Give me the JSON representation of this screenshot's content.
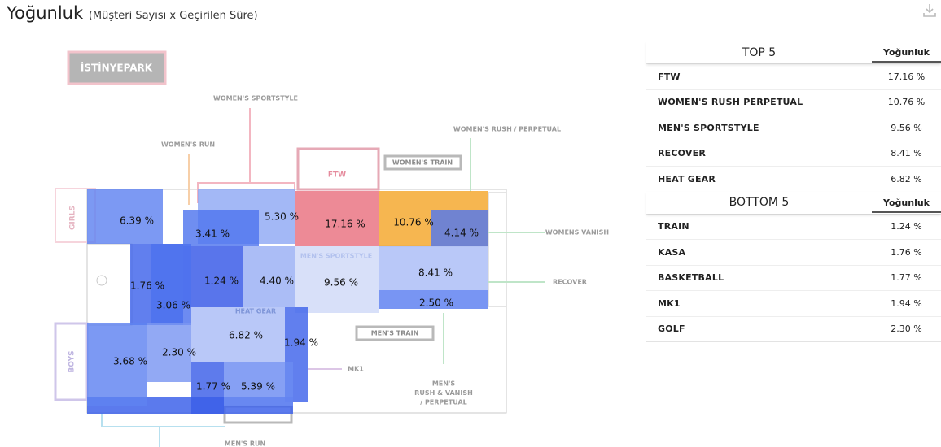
{
  "header": {
    "title": "Yoğunluk",
    "subtitle": "(Müşteri Sayısı x Geçirilen Süre)"
  },
  "map": {
    "store": "İSTİNYEPARK",
    "zones": [
      "WOMEN'S SPORTSTYLE",
      "WOMEN'S RUN",
      "GIRLS",
      "FTW",
      "WOMEN'S TRAIN",
      "WOMEN'S RUSH  / PERPETUAL",
      "WOMENS VANISH",
      "RECOVER",
      "MEN'S TRAIN",
      [
        "MEN'S",
        "RUSH  &  VANISH",
        "/ PERPETUAL"
      ],
      "MK1",
      "BOYS",
      "MEN'S RUN",
      "HEAT GEAR",
      "MEN'S SPORTSTYLE"
    ],
    "heat": [
      "6.39 %",
      "5.30 %",
      "3.41 %",
      "17.16 %",
      "10.76 %",
      "4.14 %",
      "1.76 %",
      "1.24 %",
      "4.40 %",
      "9.56 %",
      "8.41 %",
      "2.50 %",
      "3.06 %",
      "6.82 %",
      "1.94 %",
      "3.68 %",
      "2.30 %",
      "1.77 %",
      "5.39 %"
    ]
  },
  "tables": [
    {
      "title": "TOP 5",
      "column": "Yoğunluk",
      "rows": [
        [
          "FTW",
          "17.16 %"
        ],
        [
          "WOMEN'S RUSH PERPETUAL",
          "10.76 %"
        ],
        [
          "MEN'S SPORTSTYLE",
          "9.56 %"
        ],
        [
          "RECOVER",
          "8.41 %"
        ],
        [
          "HEAT GEAR",
          "6.82 %"
        ]
      ]
    },
    {
      "title": "BOTTOM 5",
      "column": "Yoğunluk",
      "rows": [
        [
          "TRAIN",
          "1.24 %"
        ],
        [
          "KASA",
          "1.76 %"
        ],
        [
          "BASKETBALL",
          "1.77 %"
        ],
        [
          "MK1",
          "1.94 %"
        ],
        [
          "GOLF",
          "2.30 %"
        ]
      ]
    }
  ]
}
